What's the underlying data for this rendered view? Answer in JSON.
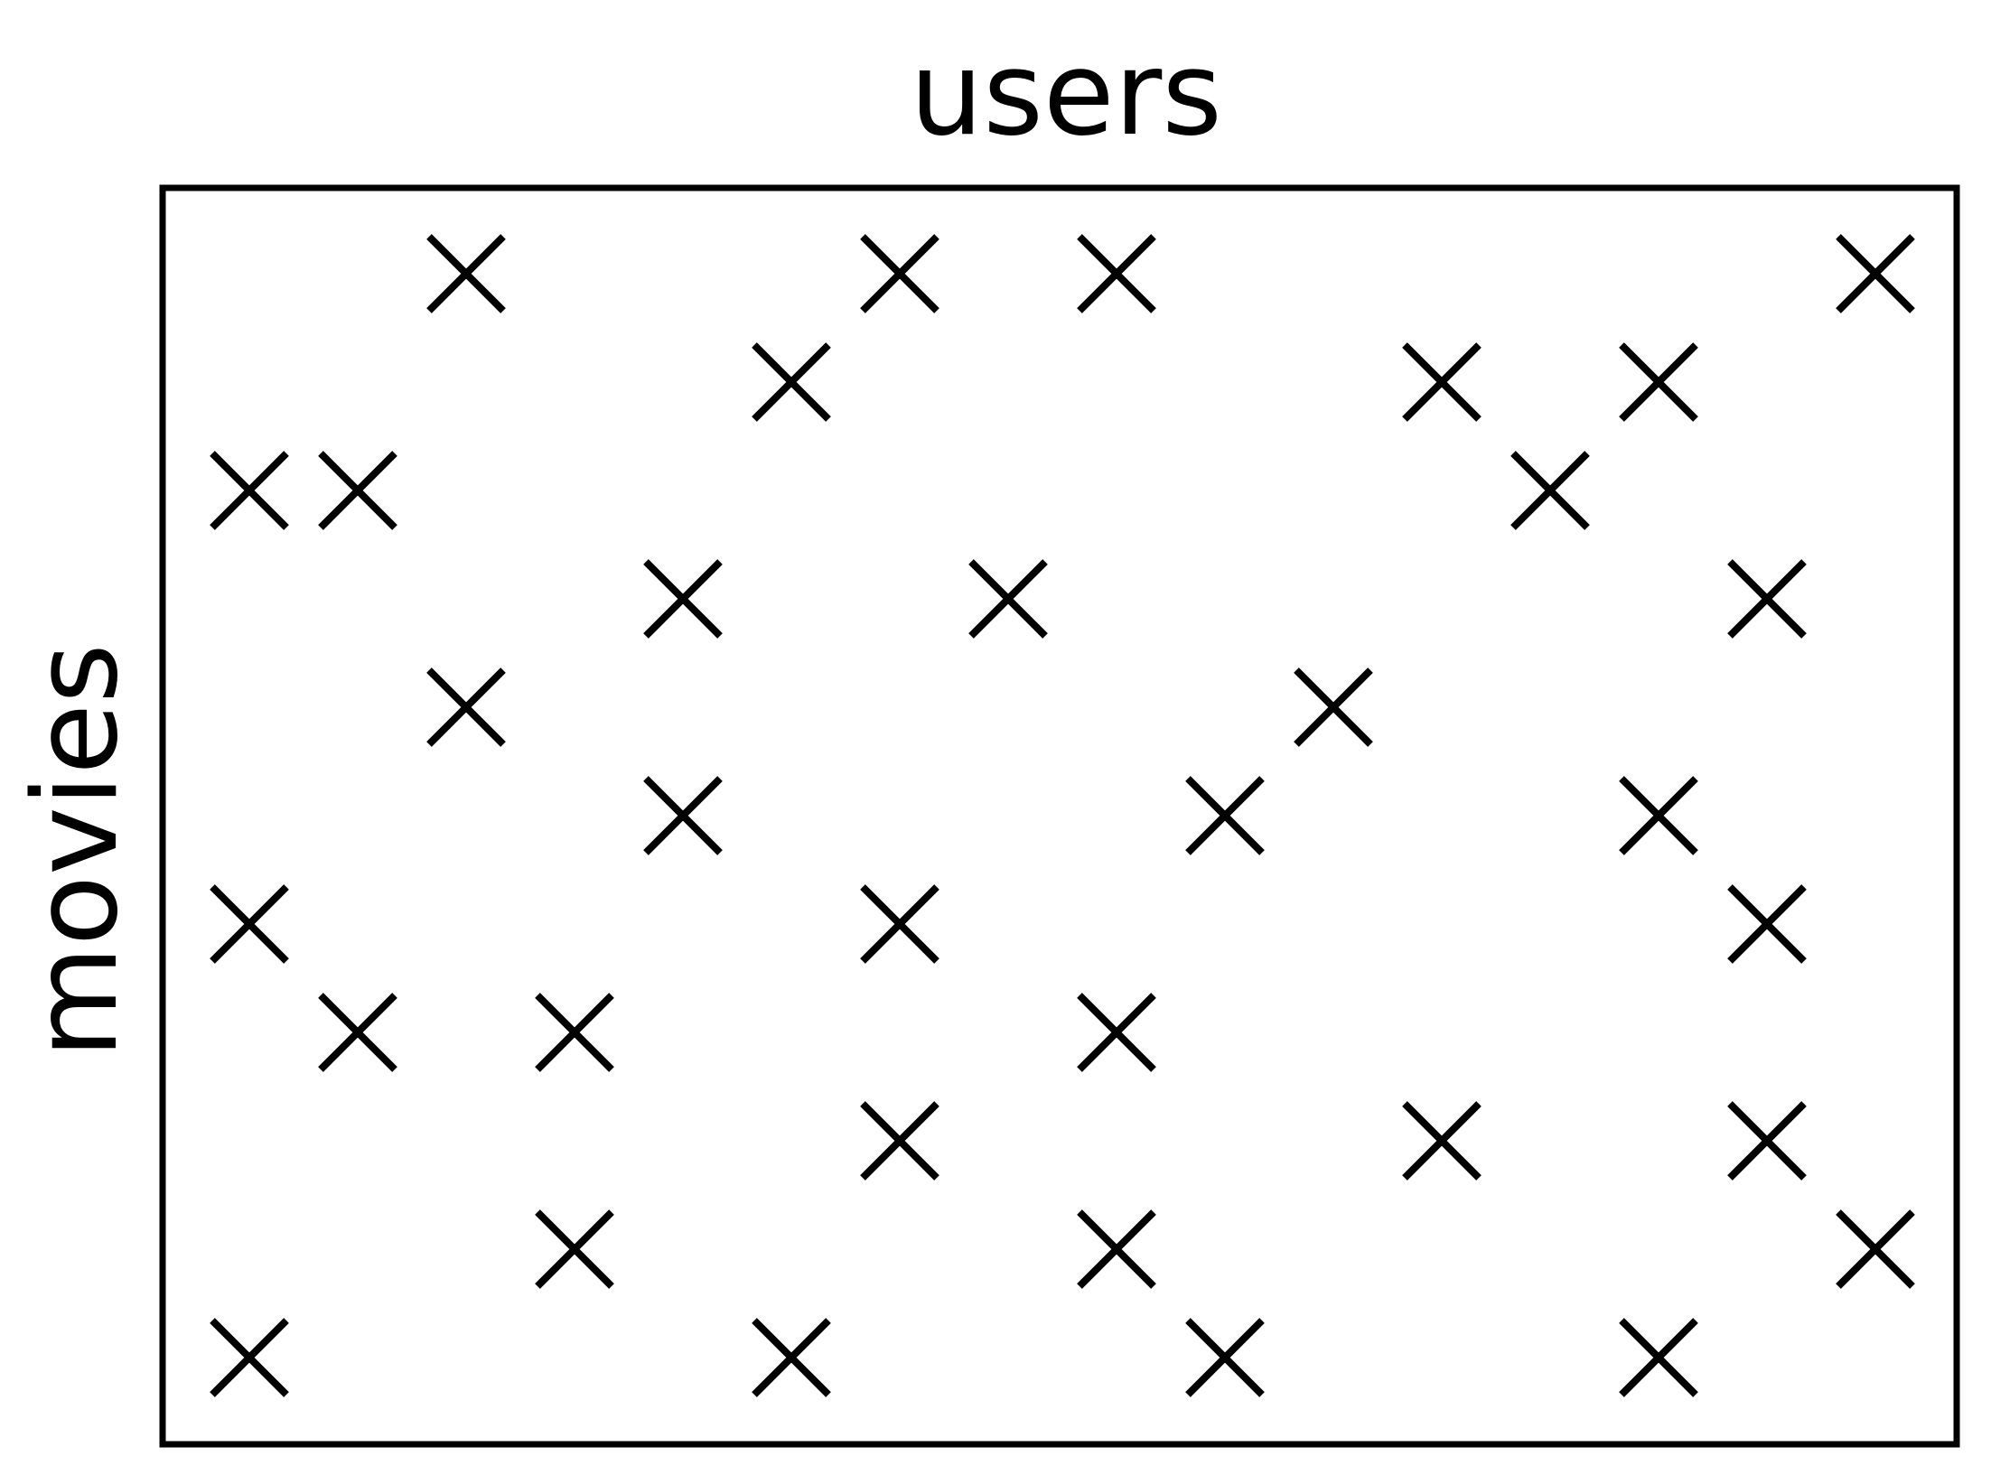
{
  "diagram": {
    "x_label": "users",
    "y_label": "movies",
    "stroke_color": "#000000",
    "background_color": "#ffffff",
    "grid": {
      "columns": 16,
      "rows": 11,
      "marked_cells": [
        [
          3,
          0
        ],
        [
          7,
          0
        ],
        [
          9,
          0
        ],
        [
          16,
          0
        ],
        [
          6,
          1
        ],
        [
          12,
          1
        ],
        [
          14,
          1
        ],
        [
          1,
          2
        ],
        [
          2,
          2
        ],
        [
          13,
          2
        ],
        [
          5,
          3
        ],
        [
          8,
          3
        ],
        [
          15,
          3
        ],
        [
          3,
          4
        ],
        [
          11,
          4
        ],
        [
          5,
          5
        ],
        [
          10,
          5
        ],
        [
          14,
          5
        ],
        [
          1,
          6
        ],
        [
          7,
          6
        ],
        [
          15,
          6
        ],
        [
          2,
          7
        ],
        [
          4,
          7
        ],
        [
          9,
          7
        ],
        [
          7,
          8
        ],
        [
          12,
          8
        ],
        [
          15,
          8
        ],
        [
          4,
          9
        ],
        [
          9,
          9
        ],
        [
          16,
          9
        ],
        [
          1,
          10
        ],
        [
          6,
          10
        ],
        [
          10,
          10
        ],
        [
          14,
          10
        ]
      ]
    }
  }
}
